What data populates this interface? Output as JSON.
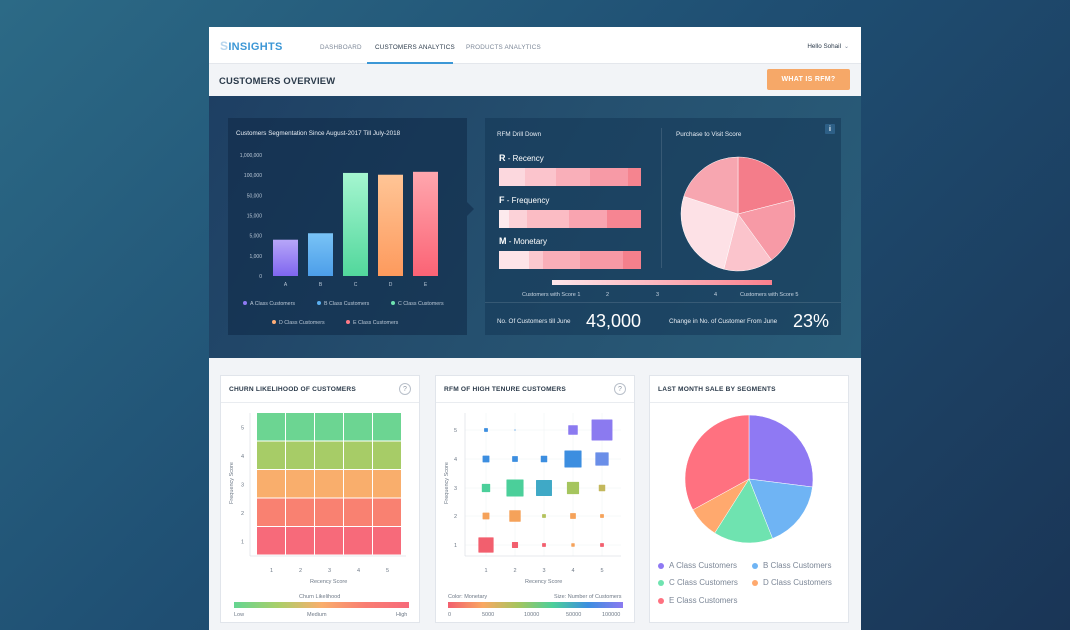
{
  "nav": {
    "logo_s": "S",
    "logo_text": "INSIGHTS",
    "tabs": [
      "DASHBOARD",
      "CUSTOMERS ANALYTICS",
      "PRODUCTS ANALYTICS"
    ],
    "user": "Hello Sohail"
  },
  "page": {
    "title": "CUSTOMERS OVERVIEW",
    "rfm_button": "WHAT IS RFM?"
  },
  "segmentation": {
    "title": "Customers Segmentation Since August-2017 Till July-2018",
    "y_ticks": [
      "1,000,000",
      "100,000",
      "50,000",
      "15,000",
      "5,000",
      "1,000",
      "0"
    ],
    "legend": [
      "A Class Customers",
      "B Class Customers",
      "C Class Customers",
      "D Class Customers",
      "E Class Customers"
    ]
  },
  "rfm": {
    "drill_title": "RFM Drill Down",
    "recency_letter": "R",
    "recency": " - Recency",
    "frequency_letter": "F",
    "frequency": " - Frequency",
    "monetary_letter": "M",
    "monetary": " - Monetary",
    "visit_title": "Purchase to Visit Score",
    "info": "i",
    "scale_left": "Customers with Score 1",
    "scale_2": "2",
    "scale_3": "3",
    "scale_4": "4",
    "scale_right": "Customers with Score 5",
    "customers_label": "No. Of Customers till June",
    "customers_value": "43,000",
    "change_label": "Change in No. of Customer From June",
    "change_value": "23%",
    "colors": {
      "recency": [
        "#fcd8de",
        "#fbc4cc",
        "#f9afb9",
        "#f79aa6",
        "#f5848f"
      ],
      "frequency": [
        "#fdeaed",
        "#fcd2d8",
        "#fbbcc4",
        "#f9a4b0",
        "#f68592"
      ],
      "monetary": [
        "#fde4e8",
        "#fbc8cf",
        "#f9aeb8",
        "#f799a5",
        "#f4808c"
      ]
    }
  },
  "churn": {
    "title": "CHURN LIKELIHOOD OF CUSTOMERS",
    "help": "?",
    "y_label": "Frequency Score",
    "x_label": "Recency Score",
    "x_ticks": [
      "1",
      "2",
      "3",
      "4",
      "5"
    ],
    "y_ticks": [
      "5",
      "4",
      "3",
      "2",
      "1"
    ],
    "legend_title": "Churn Likelihood",
    "legend_low": "Low",
    "legend_medium": "Medium",
    "legend_high": "High"
  },
  "rfm_tenure": {
    "title": "RFM OF HIGH TENURE CUSTOMERS",
    "help": "?",
    "y_label": "Frequency Score",
    "x_label": "Recency Score",
    "x_ticks": [
      "1",
      "2",
      "3",
      "4",
      "5"
    ],
    "y_ticks": [
      "5",
      "4",
      "3",
      "2",
      "1"
    ],
    "color_label": "Color: Monetary",
    "size_label": "Size: Number of Customers",
    "scale_ticks": [
      "0",
      "5000",
      "10000",
      "50000",
      "100000"
    ]
  },
  "sales": {
    "title": "LAST MONTH SALE BY SEGMENTS",
    "legend": [
      "A Class Customers",
      "B Class Customers",
      "C Class Customers",
      "D Class Customers",
      "E Class Customers"
    ]
  },
  "chart_data": [
    {
      "type": "bar",
      "title": "Customers Segmentation Since August-2017 Till July-2018",
      "categories": [
        "A",
        "B",
        "C",
        "D",
        "E"
      ],
      "values": [
        4200,
        6200,
        200000,
        120000,
        250000
      ],
      "ylim": [
        0,
        1000000
      ],
      "y_scale": "non-linear (1,000,000 / 100,000 / 50,000 / 15,000 / 5,000 / 1,000 / 0)",
      "colors": [
        "#8f79f3",
        "#5aaff0",
        "#6fe3b0",
        "#ffae78",
        "#ff7a86"
      ]
    },
    {
      "type": "pie",
      "title": "Purchase to Visit Score",
      "values": [
        21,
        19,
        14,
        26,
        20
      ],
      "colors": [
        "#f47d8a",
        "#f79aa6",
        "#fbc4cc",
        "#fde1e6",
        "#f7a6b0"
      ]
    },
    {
      "type": "heatmap",
      "title": "CHURN LIKELIHOOD OF CUSTOMERS",
      "x": [
        1,
        2,
        3,
        4,
        5
      ],
      "y": [
        5,
        4,
        3,
        2,
        1
      ],
      "values": [
        [
          0,
          0,
          0,
          0,
          0
        ],
        [
          1,
          1,
          1,
          1,
          1
        ],
        [
          2,
          2,
          2,
          2,
          2
        ],
        [
          3,
          3,
          3,
          3,
          3
        ],
        [
          4,
          4,
          4,
          4,
          4
        ]
      ],
      "colors": [
        "#6cd592",
        "#a7cc67",
        "#f9ae6c",
        "#f98171",
        "#f76a7a"
      ]
    },
    {
      "type": "scatter",
      "title": "RFM OF HIGH TENURE CUSTOMERS",
      "points": [
        {
          "x": 1,
          "y": 5,
          "size": 1,
          "color": "#3c8ee0"
        },
        {
          "x": 2,
          "y": 5,
          "size": 0.3,
          "color": "#3c8ee0"
        },
        {
          "x": 4,
          "y": 5,
          "size": 2.5,
          "color": "#8b7af0"
        },
        {
          "x": 5,
          "y": 5,
          "size": 5.5,
          "color": "#8b7af0"
        },
        {
          "x": 1,
          "y": 4,
          "size": 1.8,
          "color": "#3c8ee0"
        },
        {
          "x": 2,
          "y": 4,
          "size": 1.5,
          "color": "#3c8ee0"
        },
        {
          "x": 3,
          "y": 4,
          "size": 1.7,
          "color": "#3c8ee0"
        },
        {
          "x": 4,
          "y": 4,
          "size": 4.5,
          "color": "#3c8ee0"
        },
        {
          "x": 5,
          "y": 4,
          "size": 3.5,
          "color": "#6a8ee8"
        },
        {
          "x": 1,
          "y": 3,
          "size": 2.2,
          "color": "#4bcf9a"
        },
        {
          "x": 2,
          "y": 3,
          "size": 4.5,
          "color": "#4bcf9a"
        },
        {
          "x": 3,
          "y": 3,
          "size": 4.2,
          "color": "#3fa9c6"
        },
        {
          "x": 4,
          "y": 3,
          "size": 3.2,
          "color": "#a5c55e"
        },
        {
          "x": 5,
          "y": 3,
          "size": 1.7,
          "color": "#c3b85c"
        },
        {
          "x": 1,
          "y": 2,
          "size": 1.8,
          "color": "#f5a25a"
        },
        {
          "x": 2,
          "y": 2,
          "size": 3,
          "color": "#f5a25a"
        },
        {
          "x": 3,
          "y": 2,
          "size": 1,
          "color": "#b3c25c"
        },
        {
          "x": 4,
          "y": 2,
          "size": 1.5,
          "color": "#f5a25a"
        },
        {
          "x": 5,
          "y": 2,
          "size": 1,
          "color": "#f5a25a"
        },
        {
          "x": 1,
          "y": 1,
          "size": 4,
          "color": "#f25f6e"
        },
        {
          "x": 2,
          "y": 1,
          "size": 1.6,
          "color": "#f25f6e"
        },
        {
          "x": 3,
          "y": 1,
          "size": 1,
          "color": "#f25f6e"
        },
        {
          "x": 4,
          "y": 1,
          "size": 0.9,
          "color": "#f5a25a"
        },
        {
          "x": 5,
          "y": 1,
          "size": 1,
          "color": "#f25f6e"
        }
      ]
    },
    {
      "type": "pie",
      "title": "LAST MONTH SALE BY SEGMENTS",
      "categories": [
        "A Class Customers",
        "B Class Customers",
        "C Class Customers",
        "D Class Customers",
        "E Class Customers"
      ],
      "values": [
        27,
        17,
        15,
        8,
        33
      ],
      "colors": [
        "#8f79f3",
        "#6fb4f4",
        "#6fe3b0",
        "#ffa96e",
        "#ff7180"
      ]
    }
  ]
}
